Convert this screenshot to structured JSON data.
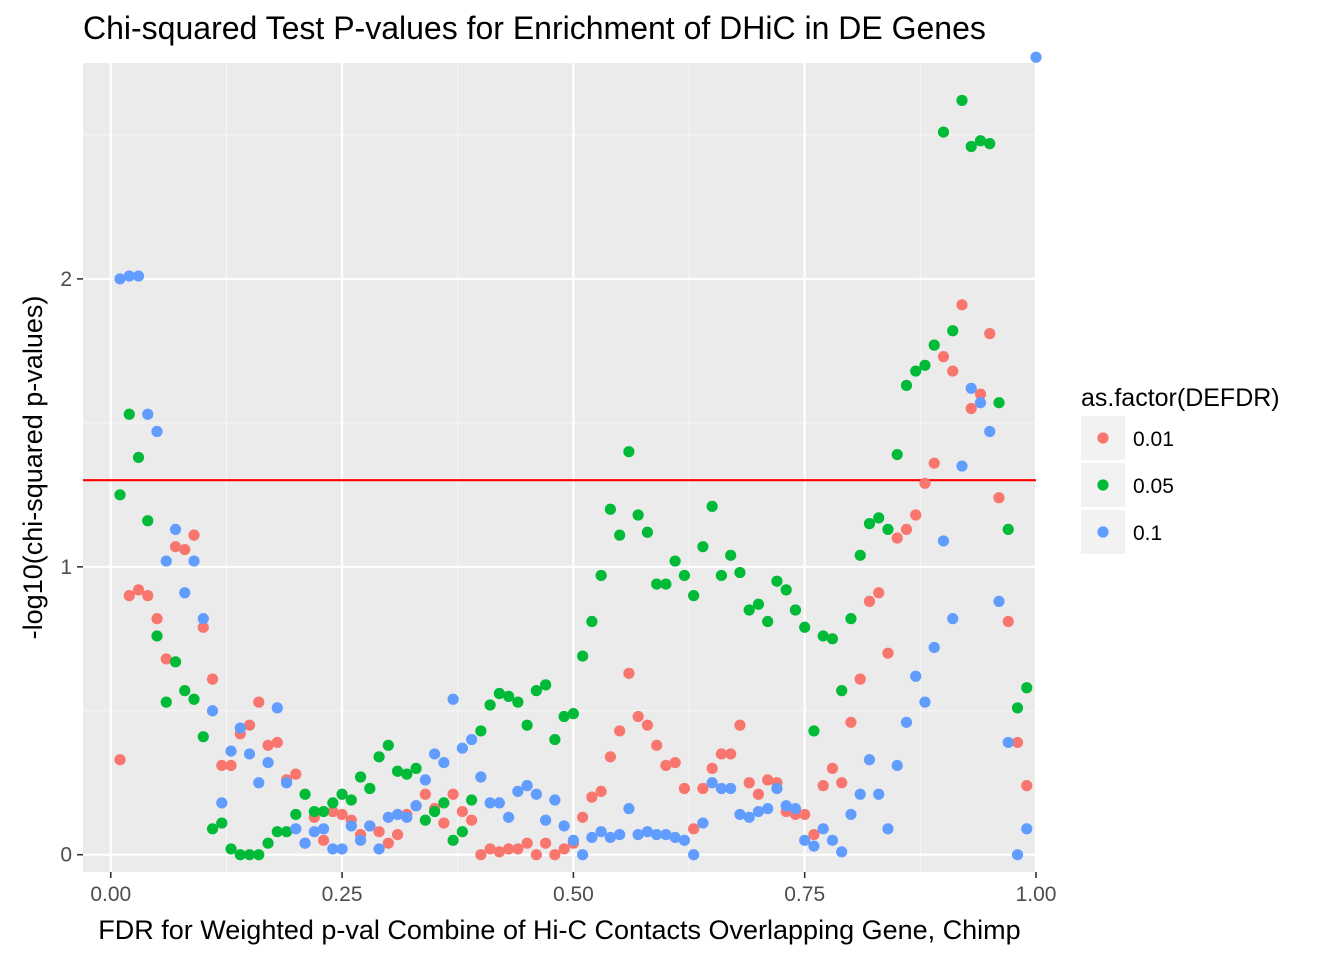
{
  "chart_data": {
    "type": "scatter",
    "title": "Chi-squared Test P-values for Enrichment of DHiC in DE Genes",
    "xlabel": "FDR for Weighted p-val Combine of Hi-C Contacts Overlapping Gene, Chimp",
    "ylabel": "-log10(chi-squared p-values)",
    "xlim": [
      -0.03,
      1.0
    ],
    "ylim": [
      -0.06,
      2.75
    ],
    "x_ticks": [
      0.0,
      0.25,
      0.5,
      0.75,
      1.0
    ],
    "x_tick_labels": [
      "0.00",
      "0.25",
      "0.50",
      "0.75",
      "1.00"
    ],
    "y_ticks": [
      0,
      1,
      2
    ],
    "y_tick_labels": [
      "0",
      "1",
      "2"
    ],
    "grid": true,
    "hline": {
      "y": 1.301,
      "color": "#ff0000"
    },
    "legend": {
      "title": "as.factor(DEFDR)",
      "position": "right",
      "entries": [
        "0.01",
        "0.05",
        "0.1"
      ]
    },
    "series": [
      {
        "name": "0.01",
        "color": "#F8766D",
        "x": [
          0.01,
          0.02,
          0.03,
          0.04,
          0.05,
          0.06,
          0.07,
          0.08,
          0.09,
          0.1,
          0.11,
          0.12,
          0.13,
          0.14,
          0.15,
          0.16,
          0.17,
          0.18,
          0.19,
          0.2,
          0.21,
          0.22,
          0.23,
          0.24,
          0.25,
          0.26,
          0.27,
          0.28,
          0.29,
          0.3,
          0.31,
          0.32,
          0.33,
          0.34,
          0.35,
          0.36,
          0.37,
          0.38,
          0.39,
          0.4,
          0.41,
          0.42,
          0.43,
          0.44,
          0.45,
          0.46,
          0.47,
          0.48,
          0.49,
          0.5,
          0.51,
          0.52,
          0.53,
          0.54,
          0.55,
          0.56,
          0.57,
          0.58,
          0.59,
          0.6,
          0.61,
          0.62,
          0.63,
          0.64,
          0.65,
          0.66,
          0.67,
          0.68,
          0.69,
          0.7,
          0.71,
          0.72,
          0.73,
          0.74,
          0.75,
          0.76,
          0.77,
          0.78,
          0.79,
          0.8,
          0.81,
          0.82,
          0.83,
          0.84,
          0.85,
          0.86,
          0.87,
          0.88,
          0.89,
          0.9,
          0.91,
          0.92,
          0.93,
          0.94,
          0.95,
          0.96,
          0.97,
          0.98,
          0.99
        ],
        "y": [
          0.33,
          0.9,
          0.92,
          0.9,
          0.82,
          0.68,
          1.07,
          1.06,
          1.11,
          0.79,
          0.61,
          0.31,
          0.31,
          0.42,
          0.45,
          0.53,
          0.38,
          0.39,
          0.26,
          0.28,
          0.04,
          0.13,
          0.05,
          0.15,
          0.14,
          0.12,
          0.07,
          0.1,
          0.08,
          0.04,
          0.07,
          0.14,
          0.17,
          0.21,
          0.16,
          0.11,
          0.21,
          0.15,
          0.12,
          0.0,
          0.02,
          0.01,
          0.02,
          0.02,
          0.04,
          0.0,
          0.04,
          0.0,
          0.02,
          0.04,
          0.13,
          0.2,
          0.22,
          0.34,
          0.43,
          0.63,
          0.48,
          0.45,
          0.38,
          0.31,
          0.32,
          0.23,
          0.09,
          0.23,
          0.3,
          0.35,
          0.35,
          0.45,
          0.25,
          0.21,
          0.26,
          0.25,
          0.15,
          0.14,
          0.14,
          0.07,
          0.24,
          0.3,
          0.25,
          0.46,
          0.61,
          0.88,
          0.91,
          0.7,
          1.1,
          1.13,
          1.18,
          1.29,
          1.36,
          1.73,
          1.68,
          1.91,
          1.55,
          1.6,
          1.81,
          1.24,
          0.81,
          0.39,
          0.24
        ]
      },
      {
        "name": "0.05",
        "color": "#00BA38",
        "x": [
          0.01,
          0.02,
          0.03,
          0.04,
          0.05,
          0.06,
          0.07,
          0.08,
          0.09,
          0.1,
          0.11,
          0.12,
          0.13,
          0.14,
          0.15,
          0.16,
          0.17,
          0.18,
          0.19,
          0.2,
          0.21,
          0.22,
          0.23,
          0.24,
          0.25,
          0.26,
          0.27,
          0.28,
          0.29,
          0.3,
          0.31,
          0.32,
          0.33,
          0.34,
          0.35,
          0.36,
          0.37,
          0.38,
          0.39,
          0.4,
          0.41,
          0.42,
          0.43,
          0.44,
          0.45,
          0.46,
          0.47,
          0.48,
          0.49,
          0.5,
          0.51,
          0.52,
          0.53,
          0.54,
          0.55,
          0.56,
          0.57,
          0.58,
          0.59,
          0.6,
          0.61,
          0.62,
          0.63,
          0.64,
          0.65,
          0.66,
          0.67,
          0.68,
          0.69,
          0.7,
          0.71,
          0.72,
          0.73,
          0.74,
          0.75,
          0.76,
          0.77,
          0.78,
          0.79,
          0.8,
          0.81,
          0.82,
          0.83,
          0.84,
          0.85,
          0.86,
          0.87,
          0.88,
          0.89,
          0.9,
          0.91,
          0.92,
          0.93,
          0.94,
          0.95,
          0.96,
          0.97,
          0.98,
          0.99
        ],
        "y": [
          1.25,
          1.53,
          1.38,
          1.16,
          0.76,
          0.53,
          0.67,
          0.57,
          0.54,
          0.41,
          0.09,
          0.11,
          0.02,
          0.0,
          0.0,
          0.0,
          0.04,
          0.08,
          0.08,
          0.14,
          0.21,
          0.15,
          0.15,
          0.18,
          0.21,
          0.19,
          0.27,
          0.23,
          0.34,
          0.38,
          0.29,
          0.28,
          0.3,
          0.12,
          0.15,
          0.18,
          0.05,
          0.08,
          0.19,
          0.43,
          0.52,
          0.56,
          0.55,
          0.53,
          0.45,
          0.57,
          0.59,
          0.4,
          0.48,
          0.49,
          0.69,
          0.81,
          0.97,
          1.2,
          1.11,
          1.4,
          1.18,
          1.12,
          0.94,
          0.94,
          1.02,
          0.97,
          0.9,
          1.07,
          1.21,
          0.97,
          1.04,
          0.98,
          0.85,
          0.87,
          0.81,
          0.95,
          0.92,
          0.85,
          0.79,
          0.43,
          0.76,
          0.75,
          0.57,
          0.82,
          1.04,
          1.15,
          1.17,
          1.13,
          1.39,
          1.63,
          1.68,
          1.7,
          1.77,
          2.51,
          1.82,
          2.62,
          2.46,
          2.48,
          2.47,
          1.57,
          1.13,
          0.51,
          0.58
        ]
      },
      {
        "name": "0.1",
        "color": "#619CFF",
        "x": [
          0.01,
          0.02,
          0.03,
          0.04,
          0.05,
          0.06,
          0.07,
          0.08,
          0.09,
          0.1,
          0.11,
          0.12,
          0.13,
          0.14,
          0.15,
          0.16,
          0.17,
          0.18,
          0.19,
          0.2,
          0.21,
          0.22,
          0.23,
          0.24,
          0.25,
          0.26,
          0.27,
          0.28,
          0.29,
          0.3,
          0.31,
          0.32,
          0.33,
          0.34,
          0.35,
          0.36,
          0.37,
          0.38,
          0.39,
          0.4,
          0.41,
          0.42,
          0.43,
          0.44,
          0.45,
          0.46,
          0.47,
          0.48,
          0.49,
          0.5,
          0.51,
          0.52,
          0.53,
          0.54,
          0.55,
          0.56,
          0.57,
          0.58,
          0.59,
          0.6,
          0.61,
          0.62,
          0.63,
          0.64,
          0.65,
          0.66,
          0.67,
          0.68,
          0.69,
          0.7,
          0.71,
          0.72,
          0.73,
          0.74,
          0.75,
          0.76,
          0.77,
          0.78,
          0.79,
          0.8,
          0.81,
          0.82,
          0.83,
          0.84,
          0.85,
          0.86,
          0.87,
          0.88,
          0.89,
          0.9,
          0.91,
          0.92,
          0.93,
          0.94,
          0.95,
          0.96,
          0.97,
          0.98,
          0.99,
          1.0
        ],
        "y": [
          2.0,
          2.01,
          2.01,
          1.53,
          1.47,
          1.02,
          1.13,
          0.91,
          1.02,
          0.82,
          0.5,
          0.18,
          0.36,
          0.44,
          0.35,
          0.25,
          0.32,
          0.51,
          0.25,
          0.09,
          0.04,
          0.08,
          0.09,
          0.02,
          0.02,
          0.1,
          0.05,
          0.1,
          0.02,
          0.13,
          0.14,
          0.13,
          0.17,
          0.26,
          0.35,
          0.32,
          0.54,
          0.37,
          0.4,
          0.27,
          0.18,
          0.18,
          0.13,
          0.22,
          0.24,
          0.21,
          0.12,
          0.19,
          0.1,
          0.05,
          0.0,
          0.06,
          0.08,
          0.06,
          0.07,
          0.16,
          0.07,
          0.08,
          0.07,
          0.07,
          0.06,
          0.05,
          0.0,
          0.11,
          0.25,
          0.23,
          0.23,
          0.14,
          0.13,
          0.15,
          0.16,
          0.23,
          0.17,
          0.16,
          0.05,
          0.03,
          0.09,
          0.05,
          0.01,
          0.14,
          0.21,
          0.33,
          0.21,
          0.09,
          0.31,
          0.46,
          0.62,
          0.53,
          0.72,
          1.09,
          0.82,
          1.35,
          1.62,
          1.57,
          1.47,
          0.88,
          0.39,
          0.0,
          0.09,
          2.77
        ]
      }
    ]
  }
}
